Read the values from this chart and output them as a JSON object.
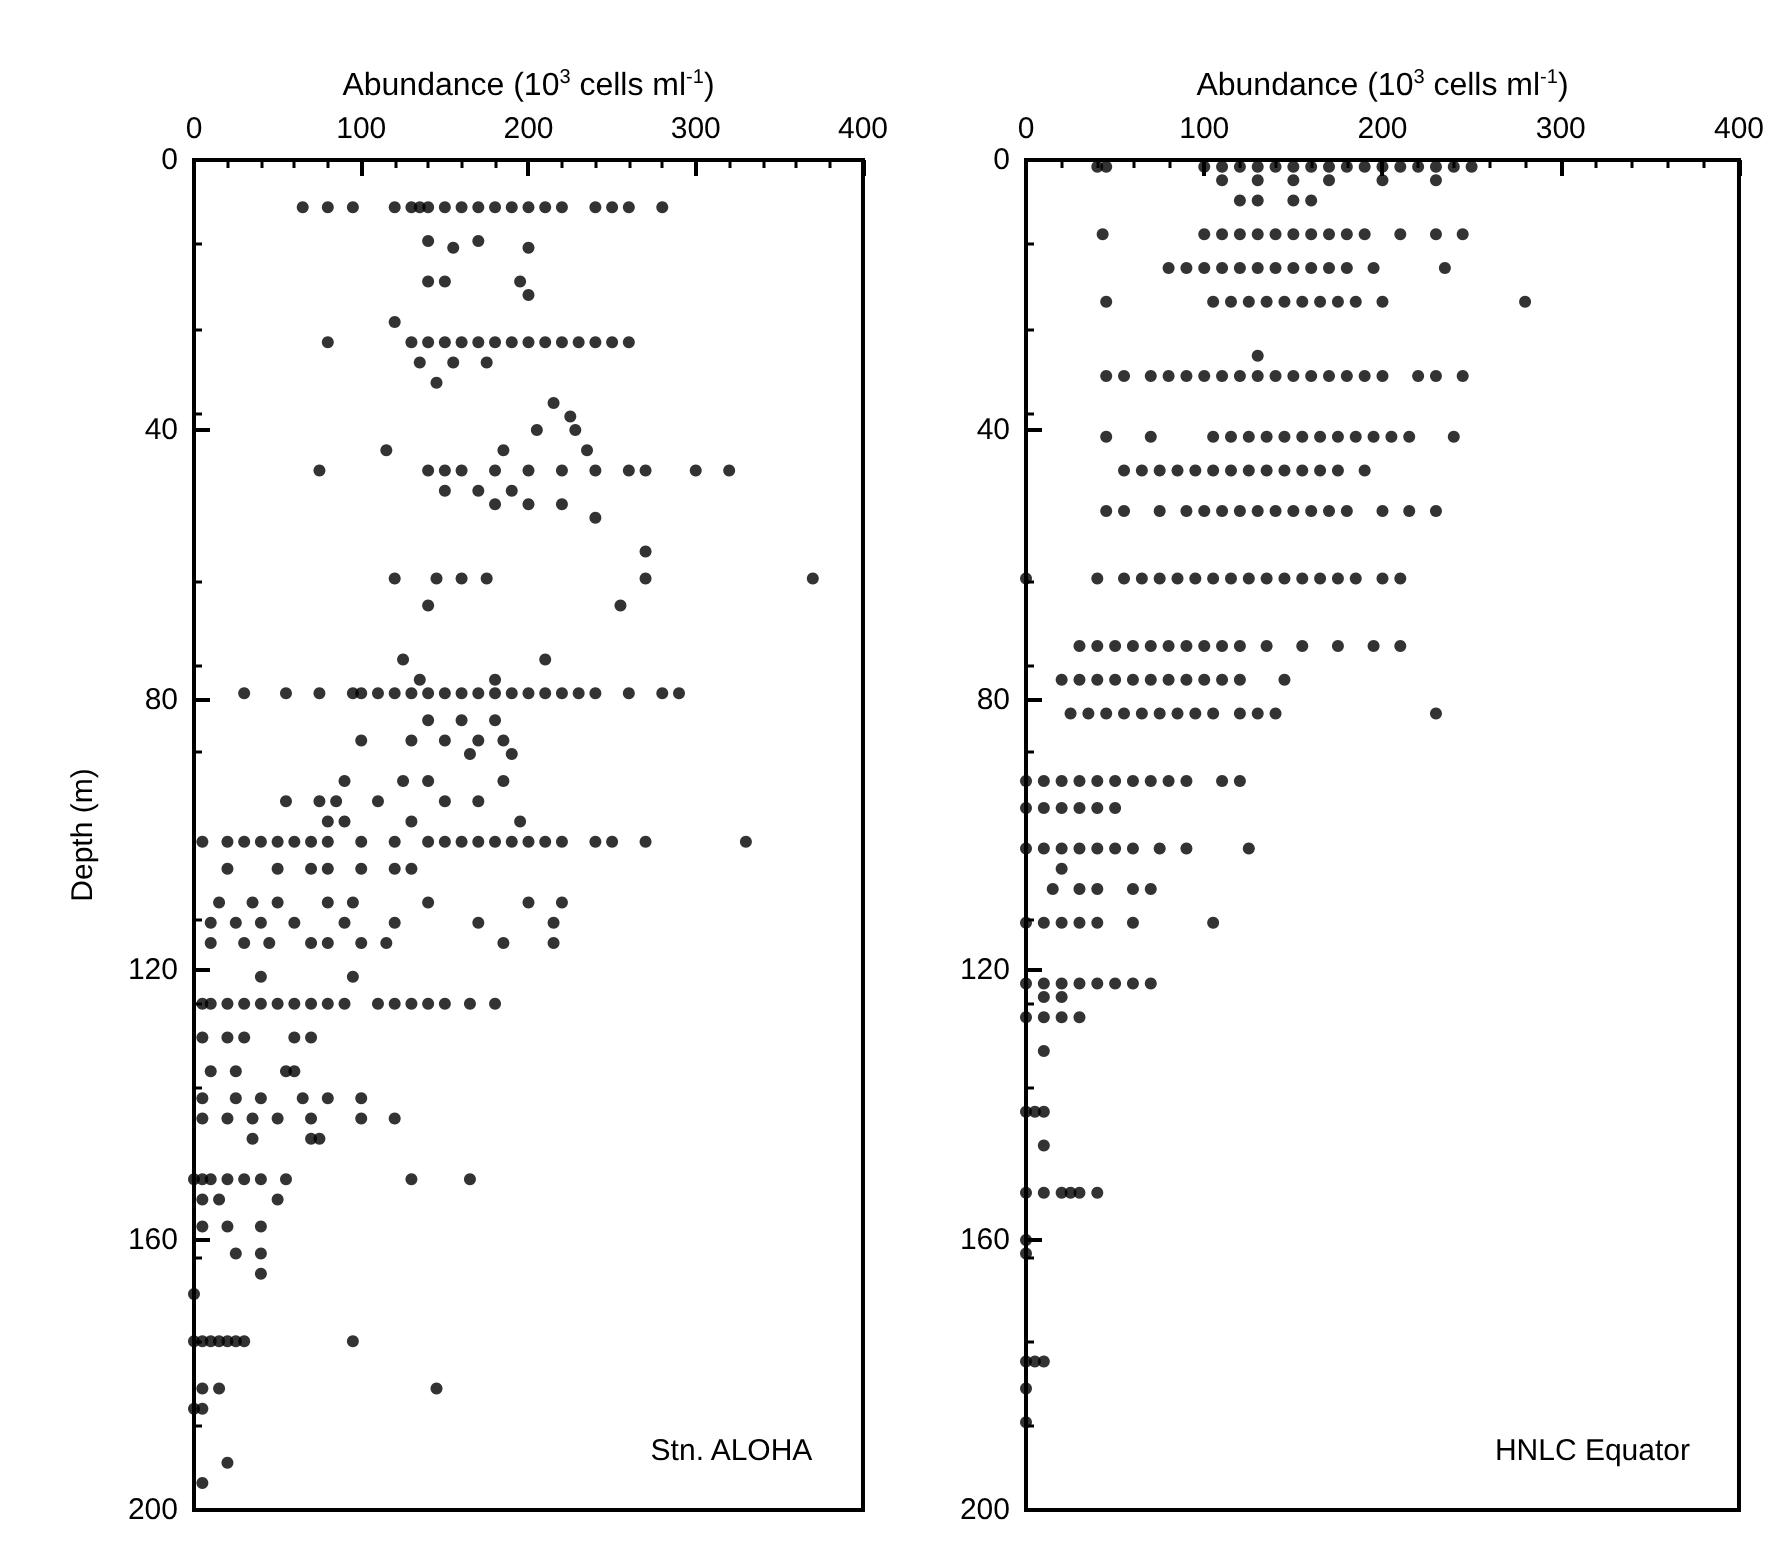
{
  "chart_data": [
    {
      "type": "scatter",
      "xlabel": "Abundance (10$^{3}$ cells ml$^{-1}$)",
      "ylabel": "Depth (m)",
      "annotations": [
        "Stn. ALOHA"
      ],
      "xlim": [
        0,
        400
      ],
      "ylim": [
        200,
        0
      ],
      "xticks": [
        0,
        100,
        200,
        300,
        400
      ],
      "yticks": [
        0,
        40,
        80,
        120,
        160,
        200
      ],
      "grid": false,
      "marker": "circle",
      "series": [
        {
          "color": "#000000",
          "x": [
            65,
            80,
            95,
            120,
            130,
            135,
            140,
            150,
            160,
            170,
            180,
            190,
            200,
            210,
            220,
            240,
            250,
            260,
            280,
            140,
            170,
            155,
            200,
            140,
            150,
            195,
            200,
            120,
            80,
            130,
            140,
            150,
            160,
            170,
            180,
            190,
            200,
            210,
            220,
            230,
            240,
            250,
            260,
            135,
            155,
            175,
            145,
            215,
            225,
            205,
            228,
            115,
            185,
            235,
            75,
            140,
            150,
            160,
            180,
            200,
            220,
            240,
            260,
            270,
            300,
            320,
            150,
            170,
            190,
            180,
            200,
            220,
            240,
            270,
            120,
            145,
            160,
            175,
            270,
            370,
            140,
            255,
            125,
            210,
            135,
            180,
            30,
            55,
            75,
            95,
            100,
            110,
            120,
            130,
            140,
            150,
            160,
            170,
            180,
            190,
            200,
            210,
            220,
            230,
            240,
            260,
            280,
            290,
            140,
            160,
            180,
            100,
            130,
            150,
            170,
            185,
            165,
            190,
            90,
            125,
            140,
            185,
            55,
            75,
            85,
            110,
            150,
            170,
            80,
            90,
            130,
            195,
            5,
            20,
            30,
            40,
            50,
            60,
            70,
            80,
            100,
            120,
            140,
            150,
            160,
            170,
            180,
            190,
            200,
            210,
            220,
            240,
            250,
            270,
            330,
            20,
            50,
            70,
            80,
            100,
            120,
            130,
            15,
            35,
            50,
            80,
            95,
            140,
            200,
            220,
            10,
            25,
            40,
            60,
            90,
            120,
            170,
            215,
            10,
            30,
            45,
            70,
            80,
            100,
            115,
            185,
            215,
            40,
            95,
            5,
            10,
            20,
            30,
            40,
            50,
            60,
            70,
            80,
            90,
            110,
            120,
            130,
            140,
            150,
            165,
            180,
            5,
            20,
            30,
            60,
            70,
            10,
            25,
            55,
            60,
            5,
            25,
            40,
            65,
            80,
            100,
            5,
            20,
            35,
            50,
            70,
            100,
            120,
            35,
            70,
            75,
            0,
            5,
            10,
            20,
            30,
            40,
            55,
            130,
            165,
            5,
            15,
            50,
            5,
            20,
            40,
            25,
            40,
            40,
            0,
            0,
            5,
            10,
            15,
            20,
            25,
            30,
            95,
            5,
            15,
            145,
            0,
            5,
            20,
            5
          ],
          "values": [
            7,
            7,
            7,
            7,
            7,
            7,
            7,
            7,
            7,
            7,
            7,
            7,
            7,
            7,
            7,
            7,
            7,
            7,
            7,
            12,
            12,
            13,
            13,
            18,
            18,
            18,
            20,
            24,
            27,
            27,
            27,
            27,
            27,
            27,
            27,
            27,
            27,
            27,
            27,
            27,
            27,
            27,
            27,
            30,
            30,
            30,
            33,
            36,
            38,
            40,
            40,
            43,
            43,
            43,
            46,
            46,
            46,
            46,
            46,
            46,
            46,
            46,
            46,
            46,
            46,
            46,
            49,
            49,
            49,
            51,
            51,
            51,
            53,
            58,
            62,
            62,
            62,
            62,
            62,
            62,
            66,
            66,
            74,
            74,
            77,
            77,
            79,
            79,
            79,
            79,
            79,
            79,
            79,
            79,
            79,
            79,
            79,
            79,
            79,
            79,
            79,
            79,
            79,
            79,
            79,
            79,
            79,
            79,
            83,
            83,
            83,
            86,
            86,
            86,
            86,
            86,
            88,
            88,
            92,
            92,
            92,
            92,
            95,
            95,
            95,
            95,
            95,
            95,
            98,
            98,
            98,
            98,
            101,
            101,
            101,
            101,
            101,
            101,
            101,
            101,
            101,
            101,
            101,
            101,
            101,
            101,
            101,
            101,
            101,
            101,
            101,
            101,
            101,
            101,
            101,
            105,
            105,
            105,
            105,
            105,
            105,
            105,
            110,
            110,
            110,
            110,
            110,
            110,
            110,
            110,
            113,
            113,
            113,
            113,
            113,
            113,
            113,
            113,
            116,
            116,
            116,
            116,
            116,
            116,
            116,
            116,
            116,
            121,
            121,
            125,
            125,
            125,
            125,
            125,
            125,
            125,
            125,
            125,
            125,
            125,
            125,
            125,
            125,
            125,
            125,
            125,
            130,
            130,
            130,
            130,
            130,
            135,
            135,
            135,
            135,
            139,
            139,
            139,
            139,
            139,
            139,
            142,
            142,
            142,
            142,
            142,
            142,
            142,
            145,
            145,
            145,
            151,
            151,
            151,
            151,
            151,
            151,
            151,
            151,
            151,
            154,
            154,
            154,
            158,
            158,
            158,
            162,
            162,
            165,
            168,
            175,
            175,
            175,
            175,
            175,
            175,
            175,
            175,
            182,
            182,
            182,
            185,
            185,
            193,
            196
          ]
        }
      ]
    },
    {
      "type": "scatter",
      "xlabel": "Abundance (10$^{3}$ cells ml$^{-1}$)",
      "annotations": [
        "HNLC Equator"
      ],
      "xlim": [
        0,
        400
      ],
      "ylim": [
        200,
        0
      ],
      "xticks": [
        0,
        100,
        200,
        300,
        400
      ],
      "yticks": [
        0,
        40,
        80,
        120,
        160,
        200
      ],
      "grid": false,
      "marker": "circle",
      "series": [
        {
          "color": "#000000",
          "x": [
            40,
            45,
            100,
            110,
            120,
            130,
            140,
            150,
            160,
            170,
            180,
            190,
            200,
            210,
            220,
            230,
            240,
            250,
            110,
            130,
            150,
            170,
            200,
            230,
            120,
            130,
            150,
            160,
            43,
            100,
            110,
            120,
            130,
            140,
            150,
            160,
            170,
            180,
            190,
            210,
            230,
            245,
            80,
            90,
            100,
            110,
            120,
            130,
            140,
            150,
            160,
            170,
            180,
            195,
            235,
            45,
            105,
            115,
            125,
            135,
            145,
            155,
            165,
            175,
            185,
            200,
            280,
            130,
            45,
            55,
            70,
            80,
            90,
            100,
            110,
            120,
            130,
            140,
            150,
            160,
            170,
            180,
            190,
            200,
            220,
            230,
            245,
            45,
            70,
            105,
            115,
            125,
            135,
            145,
            155,
            165,
            175,
            185,
            195,
            205,
            215,
            240,
            55,
            65,
            75,
            85,
            95,
            105,
            115,
            125,
            135,
            145,
            155,
            165,
            175,
            190,
            45,
            55,
            75,
            90,
            100,
            110,
            120,
            130,
            140,
            150,
            160,
            170,
            180,
            200,
            215,
            230,
            0,
            40,
            55,
            65,
            75,
            85,
            95,
            105,
            115,
            125,
            135,
            145,
            155,
            165,
            175,
            185,
            200,
            210,
            30,
            40,
            50,
            60,
            70,
            80,
            90,
            100,
            110,
            120,
            135,
            155,
            175,
            195,
            210,
            20,
            30,
            40,
            50,
            60,
            70,
            80,
            90,
            100,
            110,
            120,
            145,
            25,
            35,
            45,
            55,
            65,
            75,
            85,
            95,
            105,
            120,
            130,
            140,
            230,
            0,
            10,
            20,
            30,
            40,
            50,
            60,
            70,
            80,
            90,
            110,
            120,
            0,
            10,
            20,
            30,
            40,
            50,
            0,
            10,
            20,
            30,
            40,
            50,
            60,
            75,
            90,
            125,
            20,
            15,
            30,
            40,
            60,
            70,
            0,
            10,
            20,
            30,
            40,
            60,
            105,
            0,
            10,
            20,
            30,
            40,
            50,
            60,
            70,
            10,
            20,
            0,
            10,
            20,
            30,
            10,
            0,
            5,
            10,
            10,
            0,
            10,
            20,
            25,
            30,
            40,
            0,
            0,
            0,
            5,
            10,
            0,
            0
          ],
          "values": [
            1,
            1,
            1,
            1,
            1,
            1,
            1,
            1,
            1,
            1,
            1,
            1,
            1,
            1,
            1,
            1,
            1,
            1,
            3,
            3,
            3,
            3,
            3,
            3,
            6,
            6,
            6,
            6,
            11,
            11,
            11,
            11,
            11,
            11,
            11,
            11,
            11,
            11,
            11,
            11,
            11,
            11,
            16,
            16,
            16,
            16,
            16,
            16,
            16,
            16,
            16,
            16,
            16,
            16,
            16,
            21,
            21,
            21,
            21,
            21,
            21,
            21,
            21,
            21,
            21,
            21,
            21,
            29,
            32,
            32,
            32,
            32,
            32,
            32,
            32,
            32,
            32,
            32,
            32,
            32,
            32,
            32,
            32,
            32,
            32,
            32,
            32,
            41,
            41,
            41,
            41,
            41,
            41,
            41,
            41,
            41,
            41,
            41,
            41,
            41,
            41,
            41,
            46,
            46,
            46,
            46,
            46,
            46,
            46,
            46,
            46,
            46,
            46,
            46,
            46,
            46,
            52,
            52,
            52,
            52,
            52,
            52,
            52,
            52,
            52,
            52,
            52,
            52,
            52,
            52,
            52,
            52,
            62,
            62,
            62,
            62,
            62,
            62,
            62,
            62,
            62,
            62,
            62,
            62,
            62,
            62,
            62,
            62,
            62,
            62,
            72,
            72,
            72,
            72,
            72,
            72,
            72,
            72,
            72,
            72,
            72,
            72,
            72,
            72,
            72,
            77,
            77,
            77,
            77,
            77,
            77,
            77,
            77,
            77,
            77,
            77,
            77,
            82,
            82,
            82,
            82,
            82,
            82,
            82,
            82,
            82,
            82,
            82,
            82,
            82,
            92,
            92,
            92,
            92,
            92,
            92,
            92,
            92,
            92,
            92,
            92,
            92,
            96,
            96,
            96,
            96,
            96,
            96,
            102,
            102,
            102,
            102,
            102,
            102,
            102,
            102,
            102,
            102,
            105,
            108,
            108,
            108,
            108,
            108,
            113,
            113,
            113,
            113,
            113,
            113,
            113,
            122,
            122,
            122,
            122,
            122,
            122,
            122,
            122,
            124,
            124,
            127,
            127,
            127,
            127,
            132,
            141,
            141,
            141,
            146,
            153,
            153,
            153,
            153,
            153,
            153,
            160,
            162,
            178,
            178,
            178,
            182,
            187
          ]
        }
      ]
    }
  ]
}
